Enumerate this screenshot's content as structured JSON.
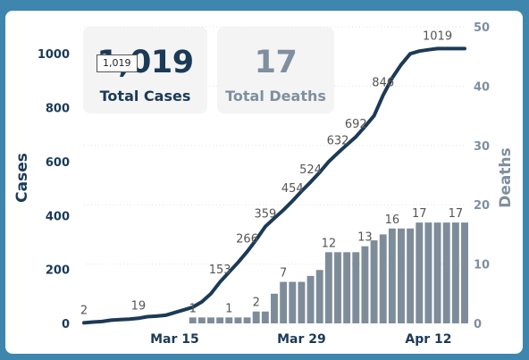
{
  "kpis": {
    "cases": {
      "value": "1,019",
      "label": "Total Cases",
      "tooltip": "1,019"
    },
    "deaths": {
      "value": "17",
      "label": "Total Deaths"
    }
  },
  "colors": {
    "cases_line": "#1b3a57",
    "deaths_bar": "#7e8c9a",
    "left_axis": "#1b3a57",
    "right_axis": "#7f8f9f",
    "frame": "#3e86ad"
  },
  "chart_data": {
    "type": "bar+line",
    "x": [
      "Mar 5",
      "Mar 6",
      "Mar 7",
      "Mar 8",
      "Mar 9",
      "Mar 10",
      "Mar 11",
      "Mar 12",
      "Mar 13",
      "Mar 14",
      "Mar 15",
      "Mar 16",
      "Mar 17",
      "Mar 18",
      "Mar 19",
      "Mar 20",
      "Mar 21",
      "Mar 22",
      "Mar 23",
      "Mar 24",
      "Mar 25",
      "Mar 26",
      "Mar 27",
      "Mar 28",
      "Mar 29",
      "Mar 30",
      "Mar 31",
      "Apr 1",
      "Apr 2",
      "Apr 3",
      "Apr 4",
      "Apr 5",
      "Apr 6",
      "Apr 7",
      "Apr 8",
      "Apr 9",
      "Apr 10",
      "Apr 11",
      "Apr 12",
      "Apr 13",
      "Apr 14",
      "Apr 15",
      "Apr 16"
    ],
    "x_ticks": [
      "Mar 15",
      "Mar 29",
      "Apr 12"
    ],
    "series": [
      {
        "name": "Cases",
        "type": "line",
        "axis": "left",
        "values": [
          2,
          5,
          7,
          12,
          14,
          16,
          19,
          25,
          27,
          30,
          40,
          50,
          60,
          80,
          110,
          153,
          190,
          226,
          266,
          310,
          359,
          390,
          420,
          454,
          490,
          524,
          560,
          600,
          632,
          662,
          692,
          730,
          770,
          846,
          910,
          960,
          1000,
          1010,
          1015,
          1019,
          1019,
          1019,
          1019
        ]
      },
      {
        "name": "Deaths",
        "type": "bar",
        "axis": "right",
        "values": [
          0,
          0,
          0,
          0,
          0,
          0,
          0,
          0,
          0,
          0,
          0,
          0,
          1,
          1,
          1,
          1,
          1,
          1,
          1,
          2,
          2,
          5,
          7,
          7,
          7,
          8,
          9,
          12,
          12,
          12,
          12,
          13,
          14,
          15,
          16,
          16,
          16,
          17,
          17,
          17,
          17,
          17,
          17
        ]
      }
    ],
    "data_labels": [
      {
        "series": "Cases",
        "x": "Mar 5",
        "text": "2"
      },
      {
        "series": "Cases",
        "x": "Mar 11",
        "text": "19"
      },
      {
        "series": "Cases",
        "x": "Mar 20",
        "text": "153"
      },
      {
        "series": "Cases",
        "x": "Mar 23",
        "text": "266"
      },
      {
        "series": "Cases",
        "x": "Mar 25",
        "text": "359"
      },
      {
        "series": "Cases",
        "x": "Mar 28",
        "text": "454"
      },
      {
        "series": "Cases",
        "x": "Mar 30",
        "text": "524"
      },
      {
        "series": "Cases",
        "x": "Apr 2",
        "text": "632"
      },
      {
        "series": "Cases",
        "x": "Apr 4",
        "text": "692"
      },
      {
        "series": "Cases",
        "x": "Apr 7",
        "text": "846"
      },
      {
        "series": "Cases",
        "x": "Apr 13",
        "text": "1019"
      },
      {
        "series": "Deaths",
        "x": "Mar 17",
        "text": "1"
      },
      {
        "series": "Deaths",
        "x": "Mar 21",
        "text": "1"
      },
      {
        "series": "Deaths",
        "x": "Mar 24",
        "text": "2"
      },
      {
        "series": "Deaths",
        "x": "Mar 27",
        "text": "7"
      },
      {
        "series": "Deaths",
        "x": "Apr 1",
        "text": "12"
      },
      {
        "series": "Deaths",
        "x": "Apr 5",
        "text": "13"
      },
      {
        "series": "Deaths",
        "x": "Apr 8",
        "text": "16"
      },
      {
        "series": "Deaths",
        "x": "Apr 11",
        "text": "17"
      },
      {
        "series": "Deaths",
        "x": "Apr 15",
        "text": "17"
      }
    ],
    "ylabel": "Cases",
    "y2label": "Deaths",
    "ylim": [
      0,
      1100
    ],
    "y_ticks": [
      0,
      200,
      400,
      600,
      800,
      1000
    ],
    "y2lim": [
      0,
      50
    ],
    "y2_ticks": [
      0,
      10,
      20,
      30,
      40,
      50
    ],
    "grid": true,
    "legend": "none"
  }
}
